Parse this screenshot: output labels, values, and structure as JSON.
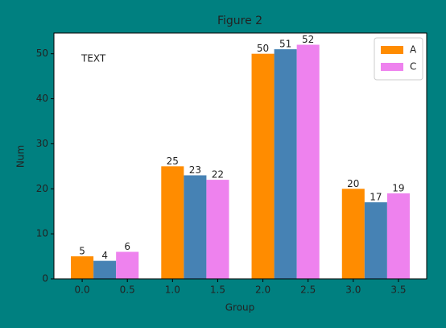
{
  "chart_data": {
    "type": "bar",
    "title": "Figure 2",
    "xlabel": "Group",
    "ylabel": "Num",
    "annotations": [
      "TEXT"
    ],
    "bar_width": 0.25,
    "series": [
      {
        "name": "A",
        "color": "#ff8c00",
        "x": [
          0,
          1,
          2,
          3
        ],
        "values": [
          5,
          25,
          50,
          20
        ]
      },
      {
        "color": "#4682b4",
        "x": [
          0.25,
          1.25,
          2.25,
          3.25
        ],
        "values": [
          4,
          23,
          51,
          17
        ]
      },
      {
        "name": "C",
        "color": "#ee82ee",
        "x": [
          0.5,
          1.5,
          2.5,
          3.5
        ],
        "values": [
          6,
          22,
          52,
          19
        ]
      }
    ],
    "xlim": [
      -0.3125,
      3.8125
    ],
    "xticks": [
      {
        "value": 0,
        "label": "0.0"
      },
      0.5,
      {
        "value": 1,
        "label": "1.0"
      },
      1.5,
      {
        "value": 2,
        "label": "2.0"
      },
      2.5,
      {
        "value": 3,
        "label": "3.0"
      },
      3.5
    ],
    "ylim": [
      0,
      54.6
    ],
    "yticks": [
      0,
      10,
      20,
      30,
      40,
      50
    ],
    "legend": "upper right"
  }
}
